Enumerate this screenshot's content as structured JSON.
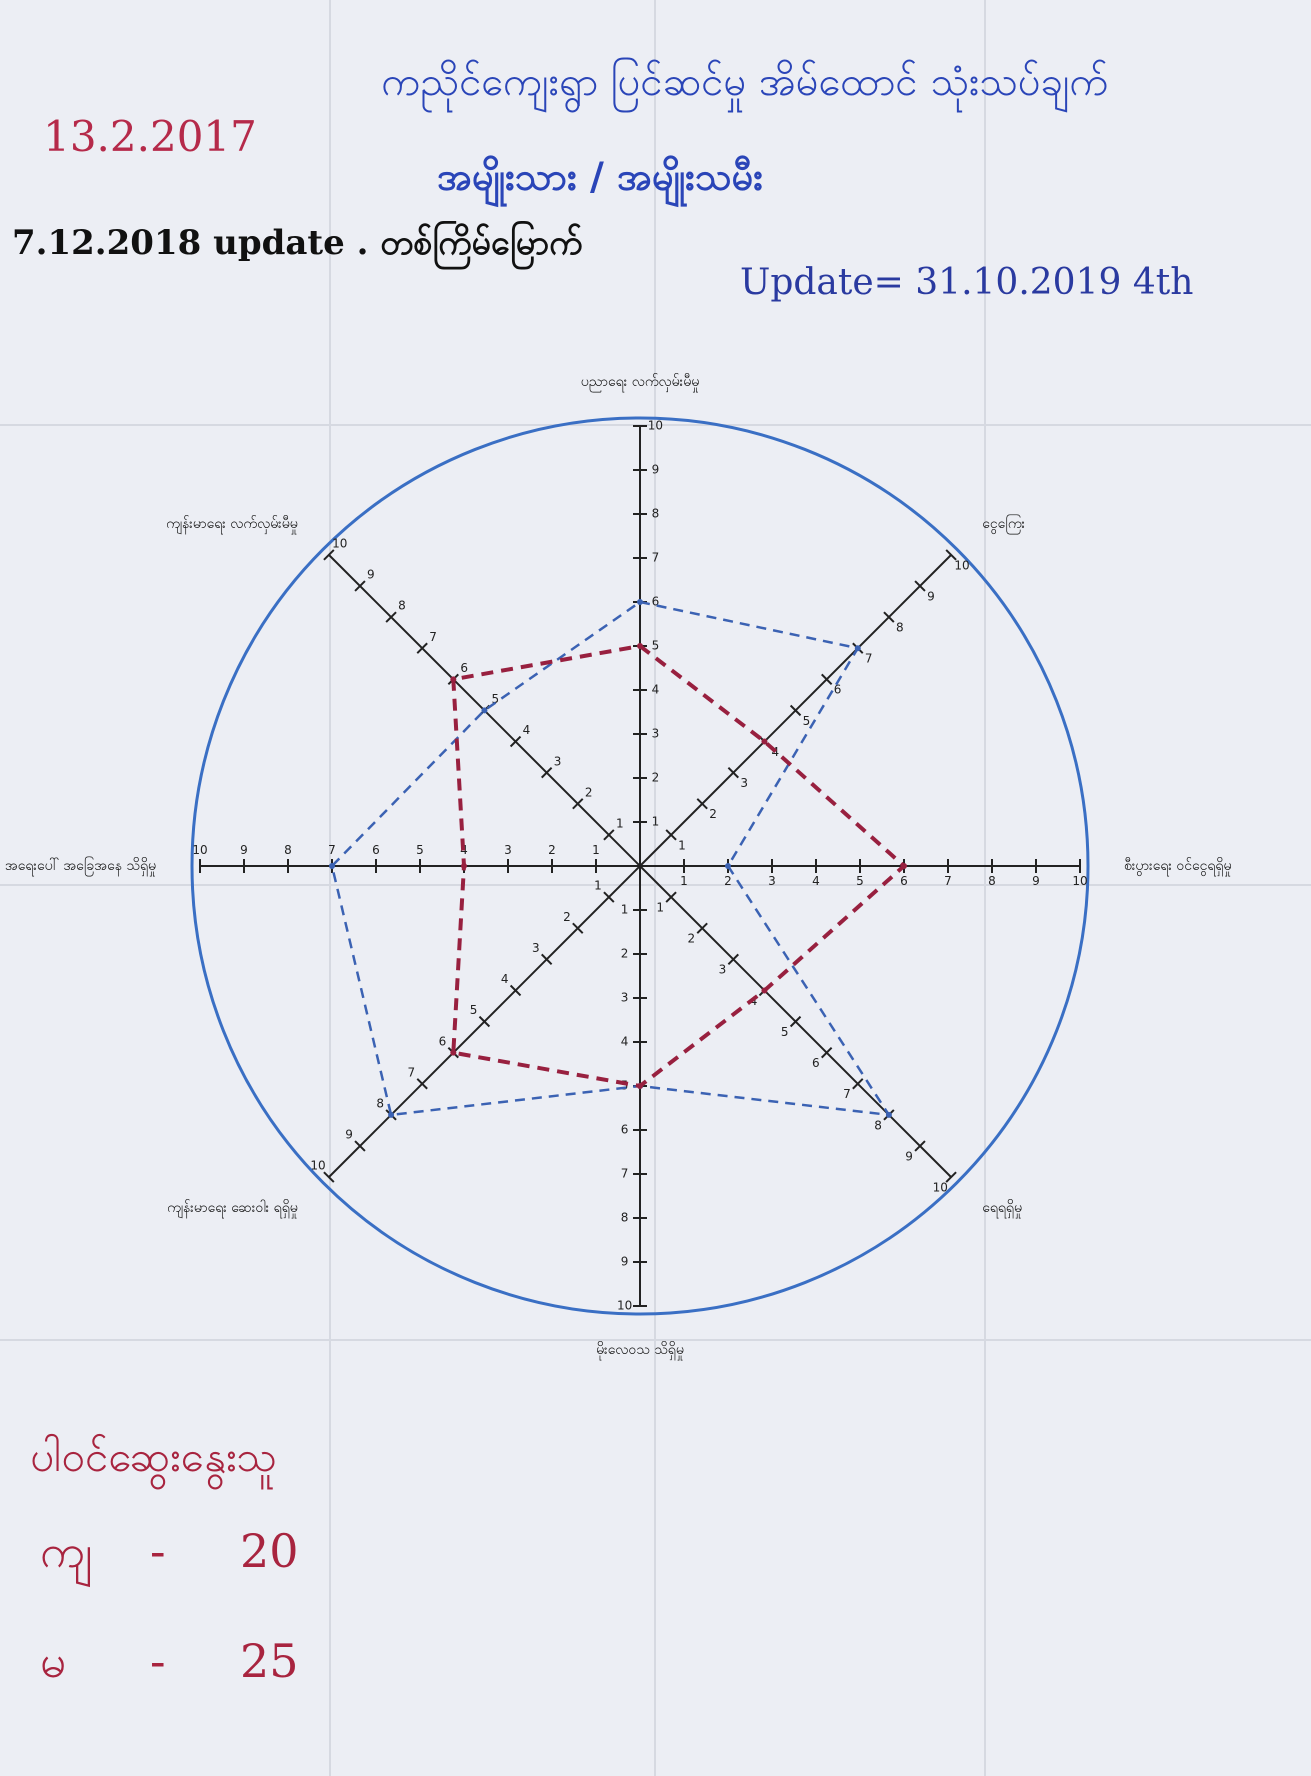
{
  "chart_data": {
    "type": "radar",
    "title": "ကညိုင်ကျေးရွာ ပြင်ဆင်မှု အိမ်ထောင် သုံးသပ်ချက်",
    "subtitle": "အမျိုးသား / အမျိုးသမီး",
    "annotations": [
      "13.2.2017",
      "7.12.2018 update . တစ်ကြိမ်မြောက်",
      "Update= 31.10.2019 4th"
    ],
    "categories": [
      "ပညာရေး လက်လှမ်းမီမှု",
      "ငွေကြေး",
      "စီးပွားရေး ဝင်ငွေရရှိမှု",
      "ရေရရှိမှု",
      "မိုးလေဝသ သိရှိမှု",
      "ကျန်းမာရေး ဆေးဝါး ရရှိမှု",
      "အရေးပေါ် အခြေအနေ သိရှိမှု",
      "ကျန်းမာရေး လက်လှမ်းမီမှု"
    ],
    "series": [
      {
        "color": "#3b62b3",
        "values": [
          6,
          7,
          2,
          8,
          5,
          8,
          7,
          5
        ]
      },
      {
        "color": "#98203f",
        "values": [
          5,
          4,
          6,
          4,
          5,
          6,
          4,
          6
        ]
      }
    ],
    "rlim": [
      0,
      10
    ],
    "rticks": [
      1,
      2,
      3,
      4,
      5,
      6,
      7,
      8,
      9,
      10
    ],
    "participants": {
      "title": "ပါဝင်ဆွေးနွေးသူ",
      "rows": [
        [
          "ကျ",
          "20"
        ],
        [
          "မ",
          "25"
        ]
      ]
    }
  }
}
